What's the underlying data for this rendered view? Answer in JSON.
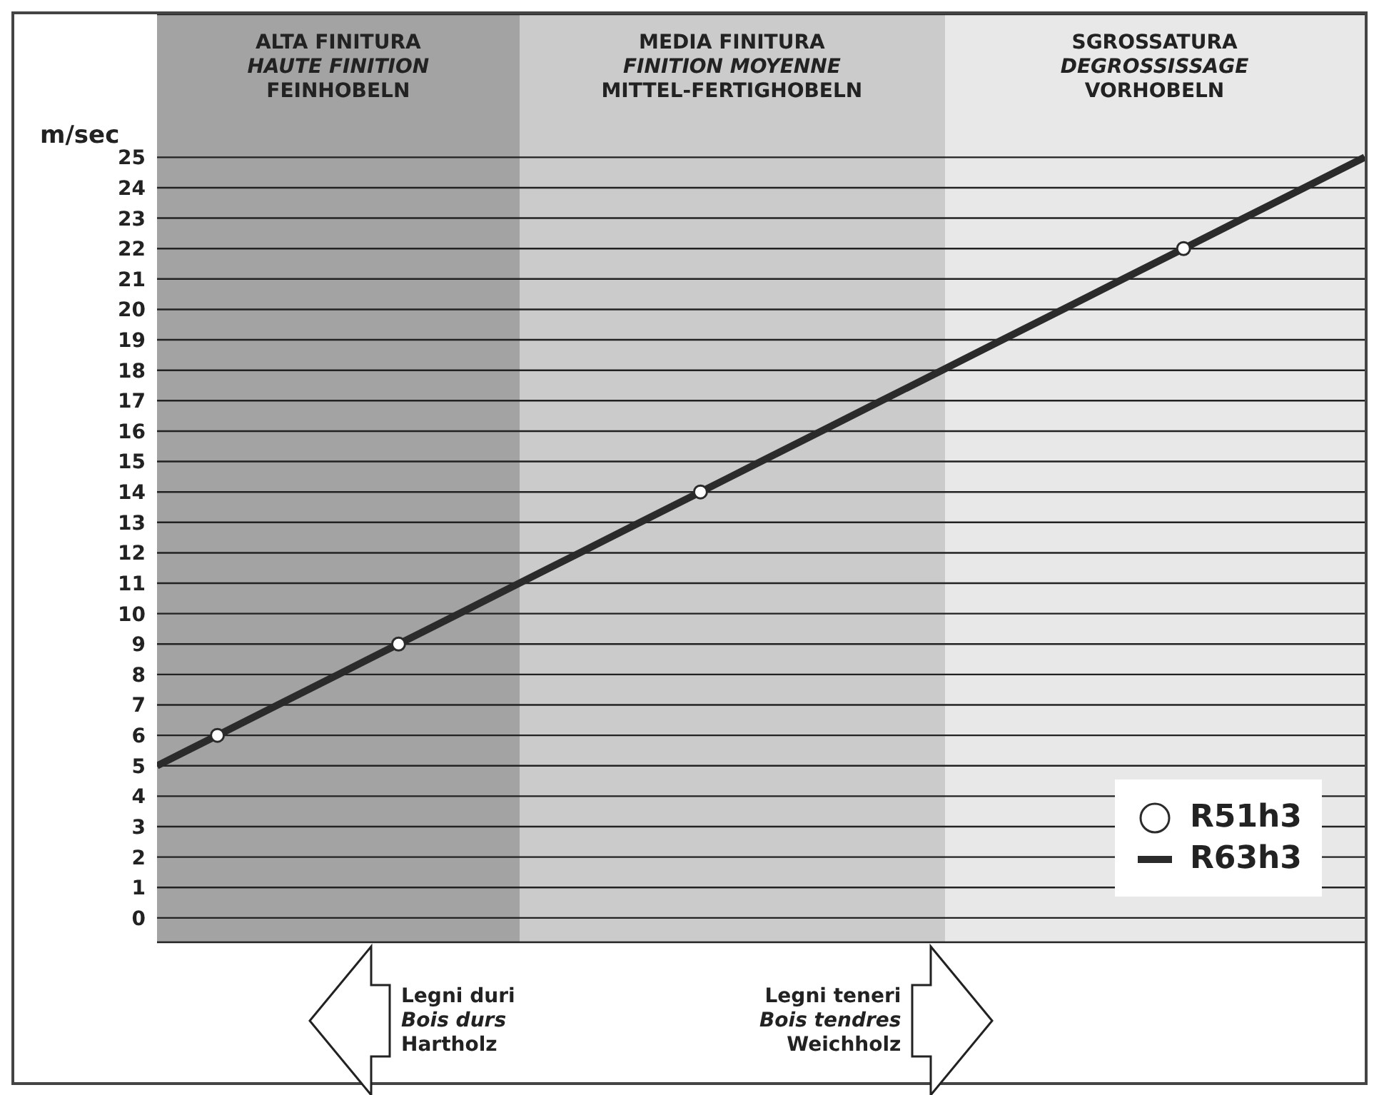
{
  "chart_data": {
    "type": "line",
    "ylabel": "m/sec",
    "categories": [
      null,
      null,
      null,
      null,
      null,
      null,
      null,
      null,
      null,
      null,
      null,
      null,
      null,
      null,
      null,
      null,
      null,
      null,
      null,
      null,
      null
    ],
    "ylim": [
      -0.8,
      29.7
    ],
    "yticks": [
      0,
      1,
      2,
      3,
      4,
      5,
      6,
      7,
      8,
      9,
      10,
      11,
      12,
      13,
      14,
      15,
      16,
      17,
      18,
      19,
      20,
      21,
      22,
      23,
      24,
      25
    ],
    "tick_labels": "y",
    "grid": "y",
    "legend": "bottom right",
    "marker": "none",
    "line_style": "solid",
    "series": [
      {
        "name": "R51h3",
        "type": "scatter",
        "marker": "circle",
        "color": "#2b2b2b",
        "values": [
          null,
          6,
          null,
          null,
          9,
          null,
          null,
          null,
          null,
          14,
          null,
          null,
          null,
          null,
          null,
          null,
          null,
          22,
          null,
          null,
          null
        ]
      },
      {
        "name": "R63h3",
        "color": "#2b2b2b",
        "values": [
          5,
          6,
          7,
          8,
          9,
          10,
          11,
          12,
          13,
          14,
          15,
          16,
          17,
          18,
          19,
          20,
          21,
          22,
          23,
          24,
          25
        ]
      }
    ],
    "annotations": [
      "ALTA FINITURA\nHAUTE FINITION\nFEINHOBELN",
      "MEDIA FINITURA\nFINITION MOYENNE\nMITTEL-FERTIGHOBELN",
      "SGROSSATURA\nDEGROSSISSAGE\nVORHOBELN",
      "Legni duri\nBois durs\nHartholz",
      "Legni teneri\nBois tendres\nWeichholz"
    ]
  }
}
